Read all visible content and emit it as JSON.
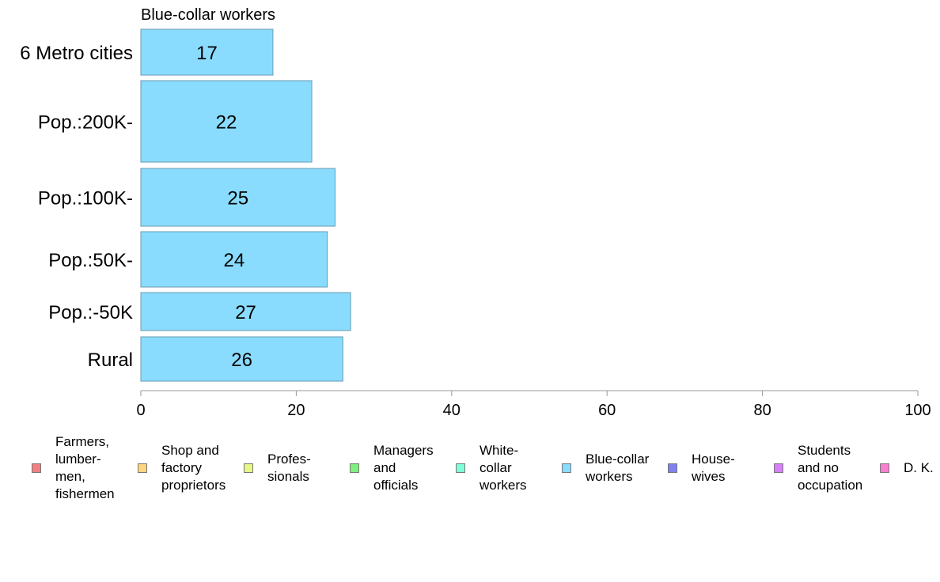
{
  "chart_data": {
    "type": "bar",
    "orientation": "horizontal",
    "title": "Blue-collar workers",
    "categories": [
      "6 Metro cities",
      "Pop.:200K-",
      "Pop.:100K-",
      "Pop.:50K-",
      "Pop.:-50K",
      "Rural"
    ],
    "series": [
      {
        "name": "Blue-collar workers",
        "values": [
          17,
          22,
          25,
          24,
          27,
          26
        ],
        "color": "#8ADCFF"
      }
    ],
    "data_labels": [
      "17",
      "22",
      "25",
      "24",
      "27",
      "26"
    ],
    "xlim": [
      0,
      100
    ],
    "xticks": [
      0,
      20,
      40,
      60,
      80,
      100
    ],
    "xtick_labels": [
      "0",
      "20",
      "40",
      "60",
      "80",
      "100"
    ],
    "grid": false,
    "bar_stroke": "#6A9AB0",
    "axis_color": "#999999",
    "legend_position": "bottom",
    "legend": [
      {
        "label": "Farmers,\nlumber-\nmen,\nfishermen",
        "color": "#F08080"
      },
      {
        "label": "Shop and\nfactory\nproprietors",
        "color": "#FFD580"
      },
      {
        "label": "Profes-\nsionals",
        "color": "#E8F888"
      },
      {
        "label": "Managers\nand\nofficials",
        "color": "#80F080"
      },
      {
        "label": "White-\ncollar\nworkers",
        "color": "#80FFD8"
      },
      {
        "label": "Blue-collar\nworkers",
        "color": "#8ADCFF"
      },
      {
        "label": "House-\nwives",
        "color": "#8080F0"
      },
      {
        "label": "Students\nand no\noccupation",
        "color": "#D880F8"
      },
      {
        "label": "D. K.",
        "color": "#F880D0"
      }
    ]
  }
}
